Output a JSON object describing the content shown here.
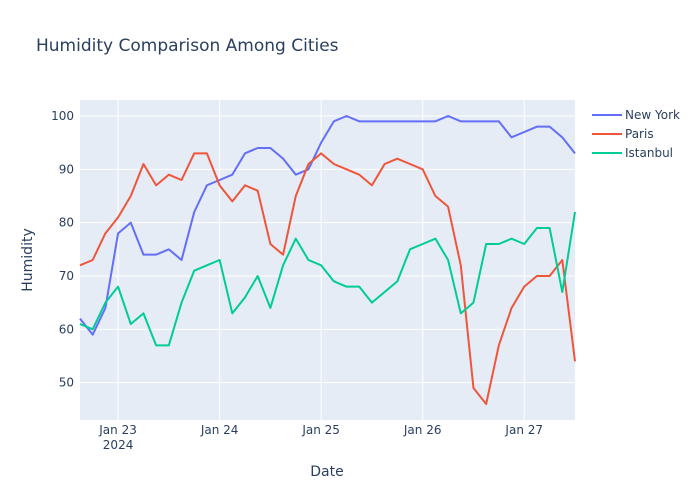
{
  "chart_data": {
    "type": "line",
    "title": "Humidity Comparison Among Cities",
    "xlabel": "Date",
    "ylabel": "Humidity",
    "x_ticks": [
      {
        "label": "Jan 23",
        "sublabel": "2024",
        "value": 0
      },
      {
        "label": "Jan 24",
        "sublabel": "",
        "value": 24
      },
      {
        "label": "Jan 25",
        "sublabel": "",
        "value": 48
      },
      {
        "label": "Jan 26",
        "sublabel": "",
        "value": 72
      },
      {
        "label": "Jan 27",
        "sublabel": "",
        "value": 96
      }
    ],
    "y_ticks": [
      50,
      60,
      70,
      80,
      90,
      100
    ],
    "xlim": [
      -9,
      108
    ],
    "ylim": [
      43,
      103
    ],
    "x": [
      -9,
      -6,
      -3,
      0,
      3,
      6,
      9,
      12,
      15,
      18,
      21,
      24,
      27,
      30,
      33,
      36,
      39,
      42,
      45,
      48,
      51,
      54,
      57,
      60,
      63,
      66,
      69,
      72,
      75,
      78,
      81,
      84,
      87,
      90,
      93,
      96,
      99,
      102,
      105,
      108
    ],
    "series": [
      {
        "name": "New York",
        "color": "#636efa",
        "values": [
          62,
          59,
          64,
          78,
          80,
          74,
          74,
          75,
          73,
          82,
          87,
          88,
          89,
          93,
          94,
          94,
          92,
          89,
          90,
          95,
          99,
          100,
          99,
          99,
          99,
          99,
          99,
          99,
          99,
          100,
          99,
          99,
          99,
          99,
          96,
          97,
          98,
          98,
          96,
          93
        ]
      },
      {
        "name": "Paris",
        "color": "#ef553b",
        "values": [
          72,
          73,
          78,
          81,
          85,
          91,
          87,
          89,
          88,
          93,
          93,
          87,
          84,
          87,
          86,
          76,
          74,
          85,
          91,
          93,
          91,
          90,
          89,
          87,
          91,
          92,
          91,
          90,
          85,
          83,
          72,
          49,
          46,
          57,
          64,
          68,
          70,
          70,
          73,
          54
        ]
      },
      {
        "name": "Istanbul",
        "color": "#00cc96",
        "values": [
          61,
          60,
          65,
          68,
          61,
          63,
          57,
          57,
          65,
          71,
          72,
          73,
          63,
          66,
          70,
          64,
          72,
          77,
          73,
          72,
          69,
          68,
          68,
          65,
          67,
          69,
          75,
          76,
          77,
          73,
          63,
          65,
          76,
          76,
          77,
          76,
          79,
          79,
          67,
          82
        ]
      }
    ],
    "grid": true,
    "legend": "top-right"
  }
}
